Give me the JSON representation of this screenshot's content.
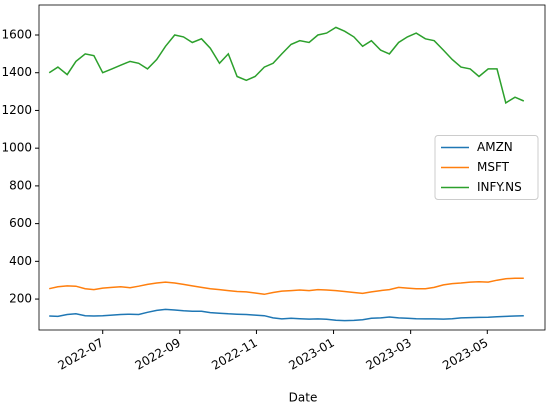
{
  "chart_data": {
    "type": "line",
    "x_label": "Date",
    "x": [
      2022.384,
      2022.403,
      2022.423,
      2022.442,
      2022.462,
      2022.481,
      2022.5,
      2022.52,
      2022.539,
      2022.559,
      2022.578,
      2022.597,
      2022.617,
      2022.636,
      2022.656,
      2022.675,
      2022.694,
      2022.714,
      2022.733,
      2022.753,
      2022.772,
      2022.791,
      2022.811,
      2022.83,
      2022.85,
      2022.869,
      2022.888,
      2022.908,
      2022.927,
      2022.947,
      2022.966,
      2022.985,
      2023.005,
      2023.024,
      2023.044,
      2023.063,
      2023.082,
      2023.102,
      2023.121,
      2023.141,
      2023.16,
      2023.179,
      2023.199,
      2023.218,
      2023.238,
      2023.257,
      2023.276,
      2023.296,
      2023.315,
      2023.335,
      2023.354,
      2023.373,
      2023.393,
      2023.412
    ],
    "series": [
      {
        "name": "AMZN",
        "color": "#1f77b4",
        "values": [
          110,
          108,
          118,
          122,
          112,
          110,
          112,
          115,
          118,
          120,
          118,
          130,
          140,
          145,
          142,
          138,
          135,
          135,
          128,
          125,
          122,
          120,
          118,
          115,
          112,
          100,
          95,
          98,
          96,
          94,
          95,
          93,
          88,
          86,
          87,
          90,
          98,
          100,
          105,
          100,
          98,
          96,
          95,
          95,
          94,
          96,
          100,
          102,
          103,
          104,
          106,
          108,
          110,
          112
        ]
      },
      {
        "name": "MSFT",
        "color": "#ff7f0e",
        "values": [
          255,
          265,
          270,
          268,
          255,
          250,
          258,
          262,
          265,
          260,
          268,
          278,
          285,
          290,
          285,
          278,
          270,
          262,
          255,
          250,
          245,
          240,
          238,
          232,
          225,
          235,
          242,
          245,
          248,
          245,
          250,
          248,
          245,
          240,
          235,
          230,
          238,
          245,
          250,
          262,
          258,
          255,
          255,
          262,
          275,
          282,
          285,
          290,
          292,
          290,
          300,
          308,
          310,
          310
        ]
      },
      {
        "name": "INFY.NS",
        "color": "#2ca02c",
        "values": [
          1400,
          1430,
          1390,
          1460,
          1500,
          1490,
          1400,
          1420,
          1440,
          1460,
          1450,
          1420,
          1470,
          1540,
          1600,
          1590,
          1560,
          1580,
          1530,
          1450,
          1500,
          1380,
          1360,
          1380,
          1430,
          1450,
          1500,
          1550,
          1570,
          1560,
          1600,
          1610,
          1640,
          1620,
          1590,
          1540,
          1570,
          1520,
          1500,
          1560,
          1590,
          1610,
          1580,
          1570,
          1520,
          1470,
          1430,
          1420,
          1380,
          1420,
          1420,
          1240,
          1270,
          1250
        ]
      }
    ],
    "xlim": [
      2022.362,
      2023.458
    ],
    "xticks": [
      {
        "value": 2022.5,
        "label": "2022-07"
      },
      {
        "value": 2022.667,
        "label": "2022-09"
      },
      {
        "value": 2022.833,
        "label": "2022-11"
      },
      {
        "value": 2023.0,
        "label": "2023-01"
      },
      {
        "value": 2023.167,
        "label": "2023-03"
      },
      {
        "value": 2023.333,
        "label": "2023-05"
      }
    ],
    "ylim": [
      36,
      1759
    ],
    "yticks": [
      200,
      400,
      600,
      800,
      1000,
      1200,
      1400,
      1600
    ],
    "legend": "center right",
    "grid": false
  }
}
